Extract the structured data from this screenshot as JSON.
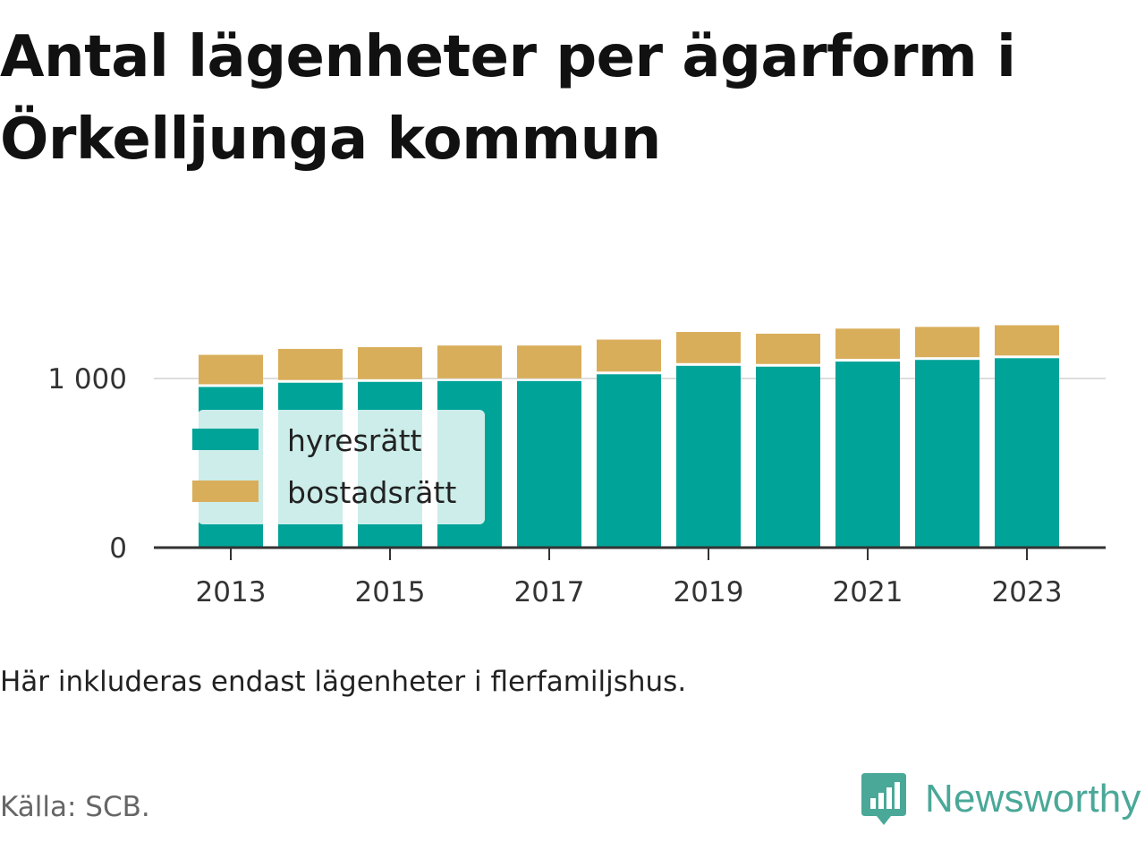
{
  "title": "Antal lägenheter per ägarform i Örkelljunga kommun",
  "footnote": "Här inkluderas endast lägenheter i flerfamiljshus.",
  "source": "Källa: SCB.",
  "brand": {
    "name": "Newsworthy",
    "icon": "newsworthy-bar-chart-logo-icon",
    "color": "#4aa898"
  },
  "colors": {
    "hyresratt": "#00a398",
    "bostadsratt": "#d9ae5b",
    "axis": "#333333",
    "grid": "#dddddd"
  },
  "chart_data": {
    "type": "bar",
    "stacked": true,
    "title": "Antal lägenheter per ägarform i Örkelljunga kommun",
    "years": [
      2013,
      2014,
      2015,
      2016,
      2017,
      2018,
      2019,
      2020,
      2021,
      2022,
      2023
    ],
    "x_tick_labels": [
      "2013",
      "2015",
      "2017",
      "2019",
      "2021",
      "2023"
    ],
    "y_ticks": [
      0,
      1000
    ],
    "y_tick_labels": [
      "0",
      "1 000"
    ],
    "ylim": [
      0,
      1350
    ],
    "grid": true,
    "legend_position": "left-inside",
    "series": [
      {
        "name": "hyresrätt",
        "values": [
          950,
          975,
          980,
          985,
          985,
          1025,
          1075,
          1070,
          1100,
          1110,
          1120
        ]
      },
      {
        "name": "bostadsrätt",
        "values": [
          190,
          200,
          205,
          210,
          210,
          205,
          200,
          195,
          195,
          195,
          195
        ]
      }
    ]
  }
}
